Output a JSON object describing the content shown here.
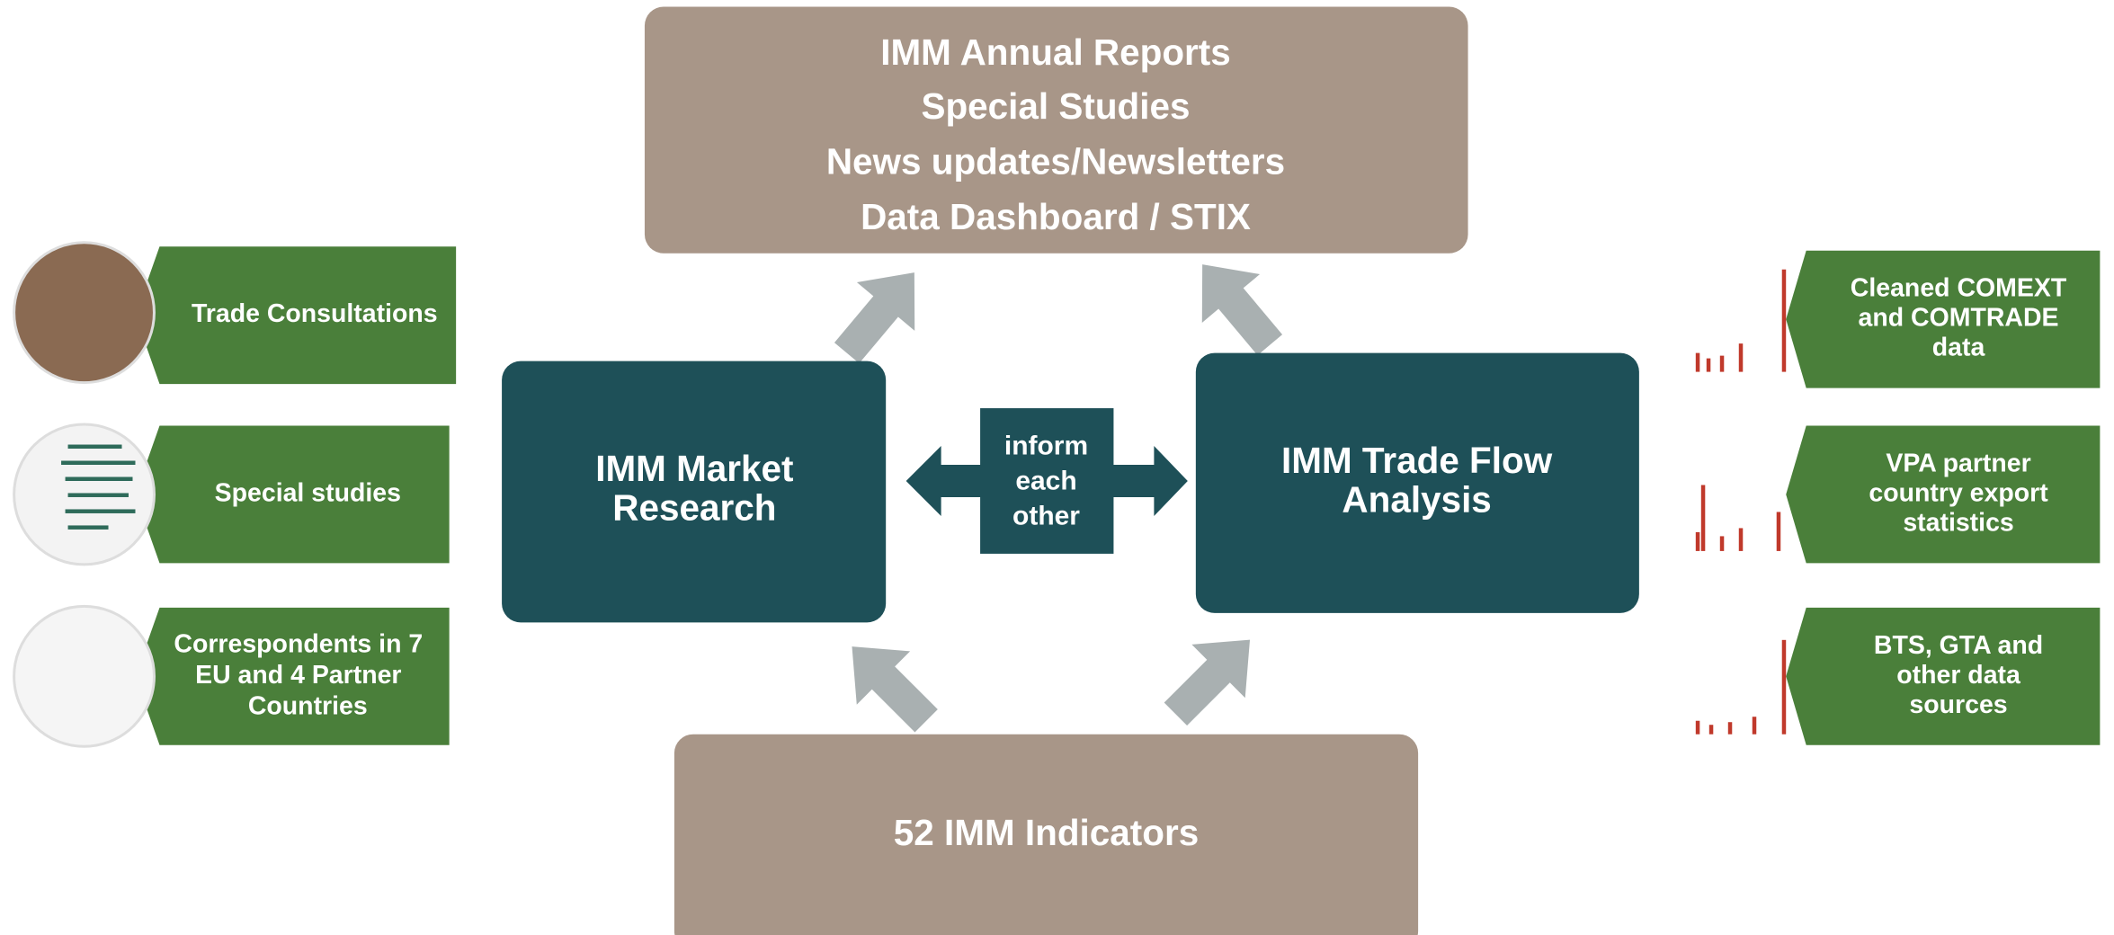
{
  "outputs": {
    "lines": [
      "IMM Annual Reports",
      "Special Studies",
      "News updates/Newsletters",
      "Data Dashboard / STIX"
    ]
  },
  "market_research": {
    "lines": [
      "IMM Market",
      "Research"
    ]
  },
  "trade_flow": {
    "lines": [
      "IMM Trade Flow",
      "Analysis"
    ]
  },
  "link": {
    "lines": [
      "inform",
      "each",
      "other"
    ]
  },
  "indicators": {
    "label": "52 IMM Indicators"
  },
  "left_inputs": [
    {
      "lines": [
        "Trade Consultations"
      ]
    },
    {
      "lines": [
        "Special studies"
      ]
    },
    {
      "lines": [
        "Correspondents in 7",
        "EU and 4 Partner",
        "Countries"
      ]
    }
  ],
  "right_inputs": [
    {
      "lines": [
        "Cleaned COMEXT",
        "and COMTRADE",
        "data"
      ]
    },
    {
      "lines": [
        "VPA partner",
        "country export",
        "statistics"
      ]
    },
    {
      "lines": [
        "BTS, GTA and",
        "other data",
        "sources"
      ]
    }
  ]
}
